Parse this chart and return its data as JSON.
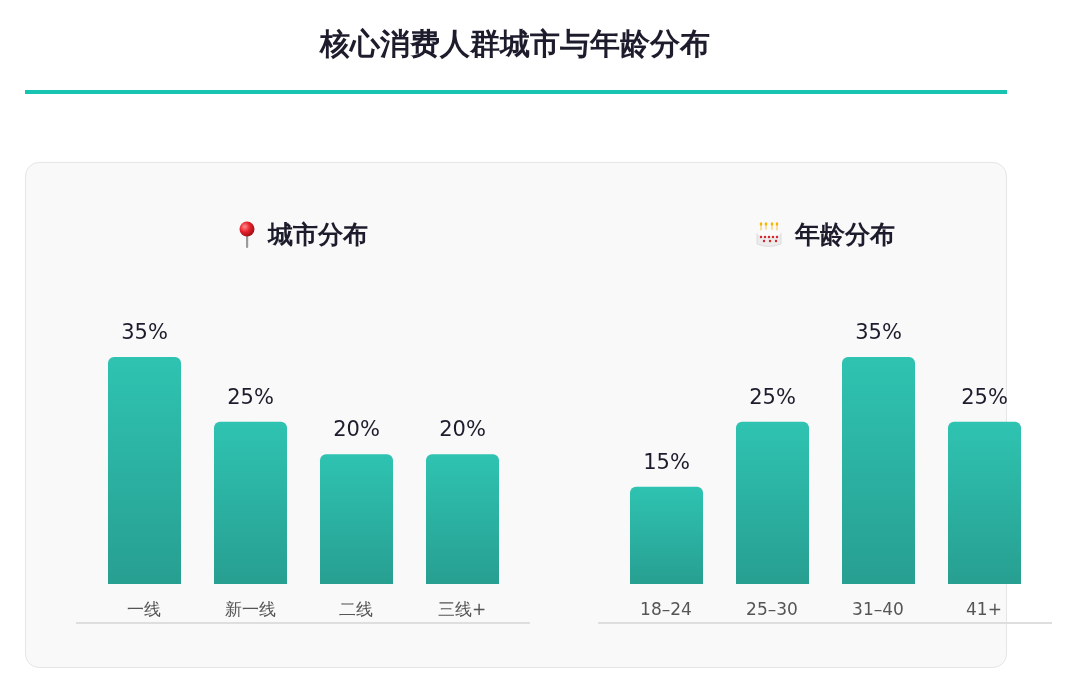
{
  "chart_data": [
    {
      "type": "other",
      "title": "核心消费人群城市与年龄分布"
    },
    {
      "type": "bar",
      "title": "城市分布",
      "categories": [
        "一线",
        "新一线",
        "二线",
        "三线+"
      ],
      "values": [
        35,
        25,
        20,
        20
      ],
      "value_labels": [
        "35%",
        "25%",
        "20%",
        "20%"
      ],
      "color": "#2bb1a1",
      "tick_labels": "x"
    },
    {
      "type": "bar",
      "title": "年龄分布",
      "categories": [
        "18–24",
        "25–30",
        "31–40",
        "41+"
      ],
      "values": [
        15,
        25,
        35,
        25
      ],
      "value_labels": [
        "15%",
        "25%",
        "35%",
        "25%"
      ],
      "color": "#2bb1a1",
      "tick_labels": "x"
    }
  ]
}
